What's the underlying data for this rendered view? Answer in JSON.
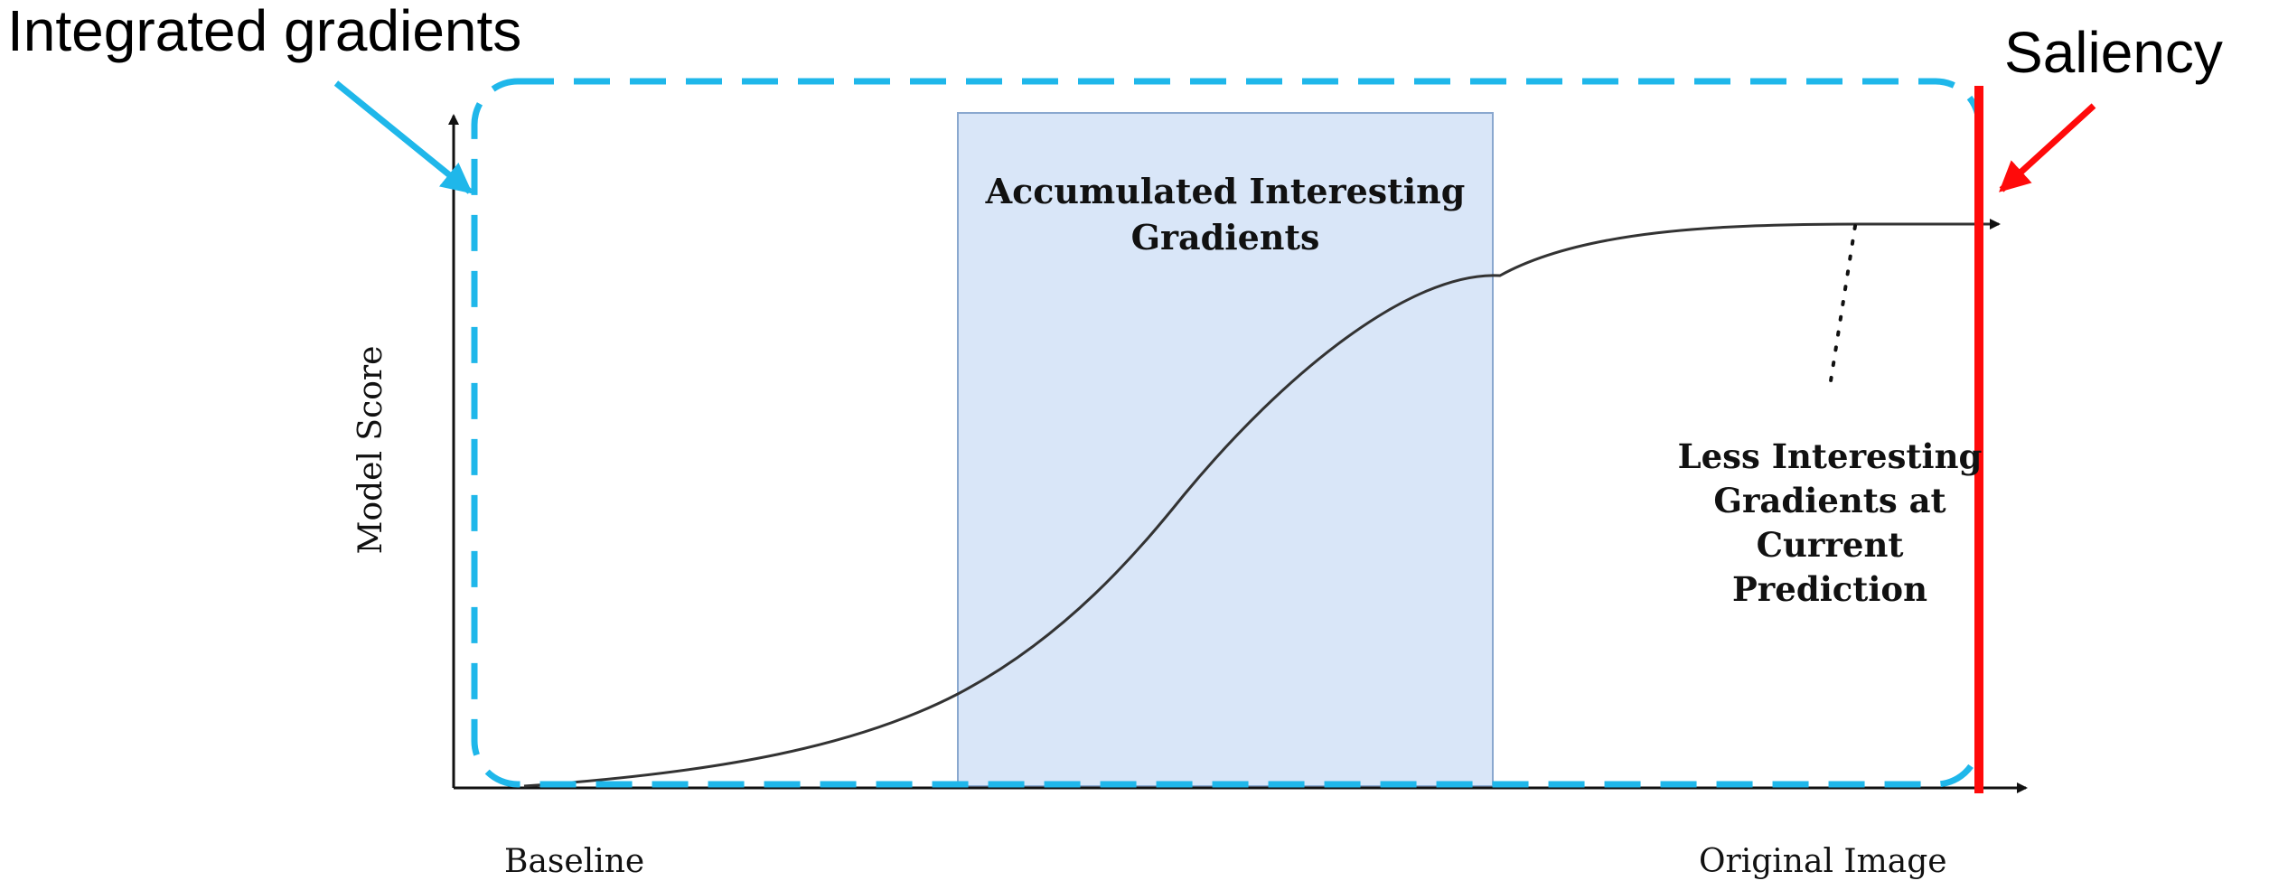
{
  "annotations": {
    "integrated_gradients": "Integrated gradients",
    "saliency": "Saliency"
  },
  "axes": {
    "ylabel": "Model Score",
    "x_start": "Baseline",
    "x_end": "Original Image"
  },
  "regions": {
    "accumulated_line1": "Accumulated Interesting",
    "accumulated_line2": "Gradients",
    "less_line1": "Less Interesting",
    "less_line2": "Gradients at",
    "less_line3": "Current",
    "less_line4": "Prediction"
  },
  "colors": {
    "integrated_gradients": "#1fb7ea",
    "saliency": "#ff0a0a",
    "shaded_region_fill": "#d9e6f8",
    "shaded_region_stroke": "#8aa8cf",
    "curve": "#333333",
    "axis": "#111111"
  }
}
